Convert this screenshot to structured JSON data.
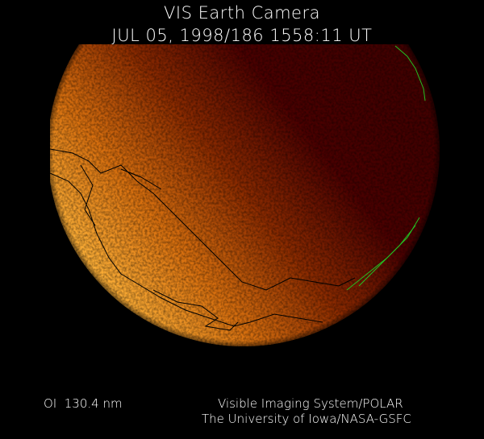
{
  "header": {
    "title": "VIS Earth Camera",
    "timestamp": "JUL 05, 1998/186 1558:11 UT"
  },
  "footer": {
    "filter": "OI  130.4 nm",
    "credit_line1": "Visible Imaging System/POLAR",
    "credit_line2": "The University of Iowa/NASA-GSFC"
  },
  "colors": {
    "background": "#000000",
    "dayglow_bright": "#ffb43a",
    "dayglow_mid": "#c25a08",
    "nightside": "#4a0000",
    "coastline": "#000000",
    "coastline_limb": "#22c022"
  }
}
